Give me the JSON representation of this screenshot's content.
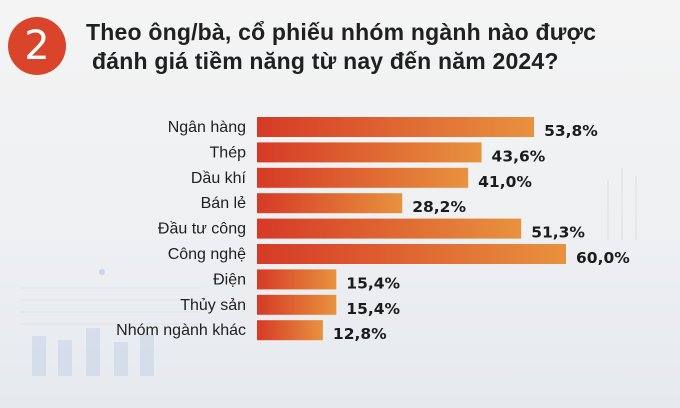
{
  "badge": {
    "number": "2"
  },
  "question": {
    "line1": "Theo ông/bà, cổ phiếu nhóm ngành nào được",
    "line2": "đánh giá tiềm năng từ nay đến năm 2024?"
  },
  "colors": {
    "badge": "#d9442a",
    "bar_start": "#d63a26",
    "bar_end": "#e8923e"
  },
  "chart_data": {
    "type": "bar",
    "orientation": "horizontal",
    "categories": [
      "Ngân hàng",
      "Thép",
      "Dầu khí",
      "Bán lẻ",
      "Đầu tư công",
      "Công nghệ",
      "Điện",
      "Thủy sản",
      "Nhóm ngành khác"
    ],
    "values": [
      53.8,
      43.6,
      41.0,
      28.2,
      51.3,
      60.0,
      15.4,
      15.4,
      12.8
    ],
    "value_labels": [
      "53,8%",
      "43,6%",
      "41,0%",
      "28,2%",
      "51,3%",
      "60,0%",
      "15,4%",
      "15,4%",
      "12,8%"
    ],
    "unit": "%",
    "xlim": [
      0,
      60
    ],
    "grid": false,
    "legend": "none"
  }
}
